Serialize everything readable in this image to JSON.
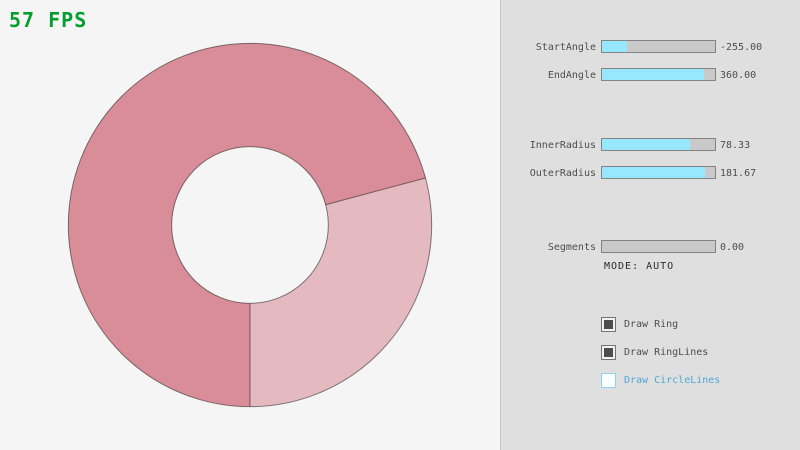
{
  "fps_label": "57 FPS",
  "panel": {
    "sliders": [
      {
        "label": "StartAngle",
        "value": "-255.00",
        "fill_percent": 21.7
      },
      {
        "label": "EndAngle",
        "value": "360.00",
        "fill_percent": 90.0
      },
      {
        "label": "InnerRadius",
        "value": "78.33",
        "fill_percent": 78.3
      },
      {
        "label": "OuterRadius",
        "value": "181.67",
        "fill_percent": 90.8
      },
      {
        "label": "Segments",
        "value": "0.00",
        "fill_percent": 0
      }
    ],
    "mode_text": "MODE: AUTO",
    "checkboxes": [
      {
        "label": "Draw Ring",
        "checked": true
      },
      {
        "label": "Draw RingLines",
        "checked": true
      },
      {
        "label": "Draw CircleLines",
        "checked": false
      }
    ]
  },
  "ring": {
    "inner_radius": 78.33,
    "outer_radius": 181.67,
    "start_angle": -255,
    "end_angle": 360,
    "color_single": "#e5b9c0",
    "color_double": "#d98d98"
  },
  "colors": {
    "fps_green": "#049e2f",
    "slider_fill": "#97e8ff",
    "slider_track": "#c9c9c9",
    "slider_border": "#838383",
    "panel_background": "#dfdfdf",
    "canvas_background": "#f5f5f5",
    "unchecked_accent": "#4fa8d4",
    "text_gray": "#4e4e4e"
  }
}
